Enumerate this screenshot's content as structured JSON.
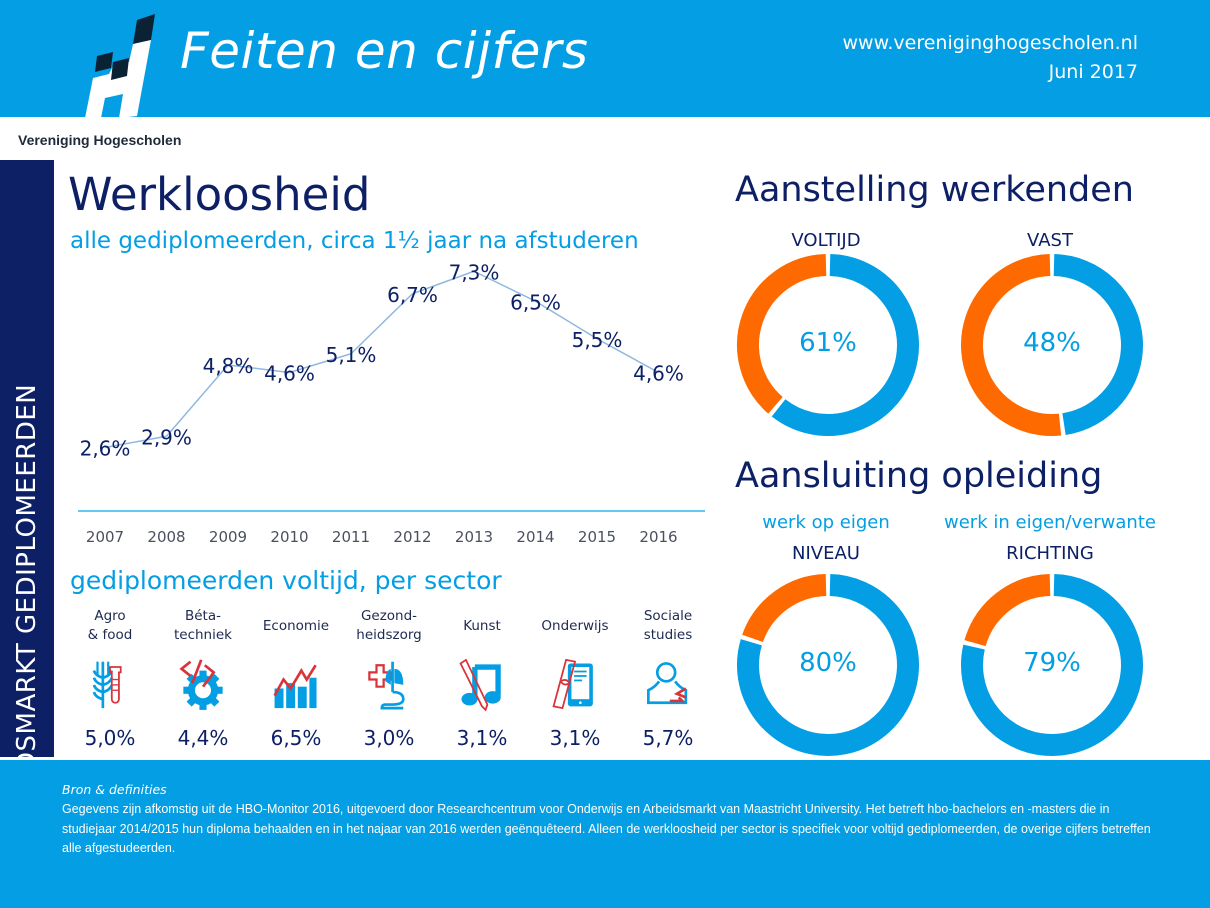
{
  "header": {
    "title": "Feiten en cijfers",
    "url": "www.vereniginghogescholen.nl",
    "date": "Juni 2017",
    "logo": "vh-logo-icon"
  },
  "org_name": "Vereniging Hogescholen",
  "sidebar": {
    "label": "ARBEIDSMARKT GEDIPLOMEERDEN"
  },
  "werkloosheid": {
    "title": "Werkloosheid",
    "subtitle": "alle gediplomeerden, circa 1½ jaar na afstuderen"
  },
  "sector_section": {
    "title": "gediplomeerden voltijd, per sector",
    "sectors": [
      {
        "label": "Agro\n& food",
        "icon": "wheat-testtube-icon",
        "value": "5,0%"
      },
      {
        "label": "Béta-\ntechniek",
        "icon": "code-gear-icon",
        "value": "4,4%"
      },
      {
        "label": "Economie",
        "icon": "bar-chart-trend-icon",
        "value": "6,5%"
      },
      {
        "label": "Gezond-\nheidszorg",
        "icon": "cross-lungs-icon",
        "value": "3,0%"
      },
      {
        "label": "Kunst",
        "icon": "pencil-music-note-icon",
        "value": "3,1%"
      },
      {
        "label": "Onderwijs",
        "icon": "diploma-tablet-icon",
        "value": "3,1%"
      },
      {
        "label": "Sociale\nstudies",
        "icon": "person-arrows-icon",
        "value": "5,7%"
      }
    ]
  },
  "aanstelling": {
    "title": "Aanstelling werkenden",
    "donuts": [
      {
        "label": "VOLTIJD",
        "value_text": "61%",
        "percent": 61
      },
      {
        "label": "VAST",
        "value_text": "48%",
        "percent": 48
      }
    ]
  },
  "aansluiting": {
    "title": "Aansluiting opleiding",
    "donuts": [
      {
        "sublabel": "werk op eigen",
        "label": "NIVEAU",
        "value_text": "80%",
        "percent": 80
      },
      {
        "sublabel": "werk in eigen/verwante",
        "label": "RICHTING",
        "value_text": "79%",
        "percent": 79
      }
    ]
  },
  "colors": {
    "brand_blue": "#039ee3",
    "navy": "#0d2066",
    "orange": "#ff6a00",
    "icon_red": "#d9343a",
    "line": "#8fb8e0"
  },
  "footer": {
    "heading": "Bron & definities",
    "body": "Gegevens zijn afkomstig uit de HBO-Monitor 2016, uitgevoerd door Researchcentrum voor Onderwijs en Arbeidsmarkt van Maastricht University. Het betreft hbo-bachelors en -masters die in studiejaar 2014/2015 hun diploma behaalden en in het najaar van 2016 werden geënquêteerd. Alleen de werkloosheid per sector is specifiek voor voltijd gediplomeerden, de overige cijfers betreffen alle afgestudeerden."
  },
  "chart_data": [
    {
      "type": "line",
      "title": "Werkloosheid",
      "subtitle": "alle gediplomeerden, circa 1½ jaar na afstuderen",
      "categories": [
        "2007",
        "2008",
        "2009",
        "2010",
        "2011",
        "2012",
        "2013",
        "2014",
        "2015",
        "2016"
      ],
      "values": [
        2.6,
        2.9,
        4.8,
        4.6,
        5.1,
        6.7,
        7.3,
        6.5,
        5.5,
        4.6
      ],
      "labels": [
        "2,6%",
        "2,9%",
        "4,8%",
        "4,6%",
        "5,1%",
        "6,7%",
        "7,3%",
        "6,5%",
        "5,5%",
        "4,6%"
      ],
      "xlabel": "",
      "ylabel": "",
      "ylim": [
        0,
        8
      ],
      "grid": false
    },
    {
      "type": "bar",
      "title": "gediplomeerden voltijd, per sector",
      "categories": [
        "Agro & food",
        "Béta-techniek",
        "Economie",
        "Gezondheidszorg",
        "Kunst",
        "Onderwijs",
        "Sociale studies"
      ],
      "values": [
        5.0,
        4.4,
        6.5,
        3.0,
        3.1,
        3.1,
        5.7
      ]
    },
    {
      "type": "pie",
      "title": "Aanstelling werkenden",
      "categories": [
        "VOLTIJD",
        "VAST"
      ],
      "values": [
        61,
        48
      ]
    },
    {
      "type": "pie",
      "title": "Aansluiting opleiding",
      "categories": [
        "NIVEAU",
        "RICHTING"
      ],
      "values": [
        80,
        79
      ]
    }
  ]
}
